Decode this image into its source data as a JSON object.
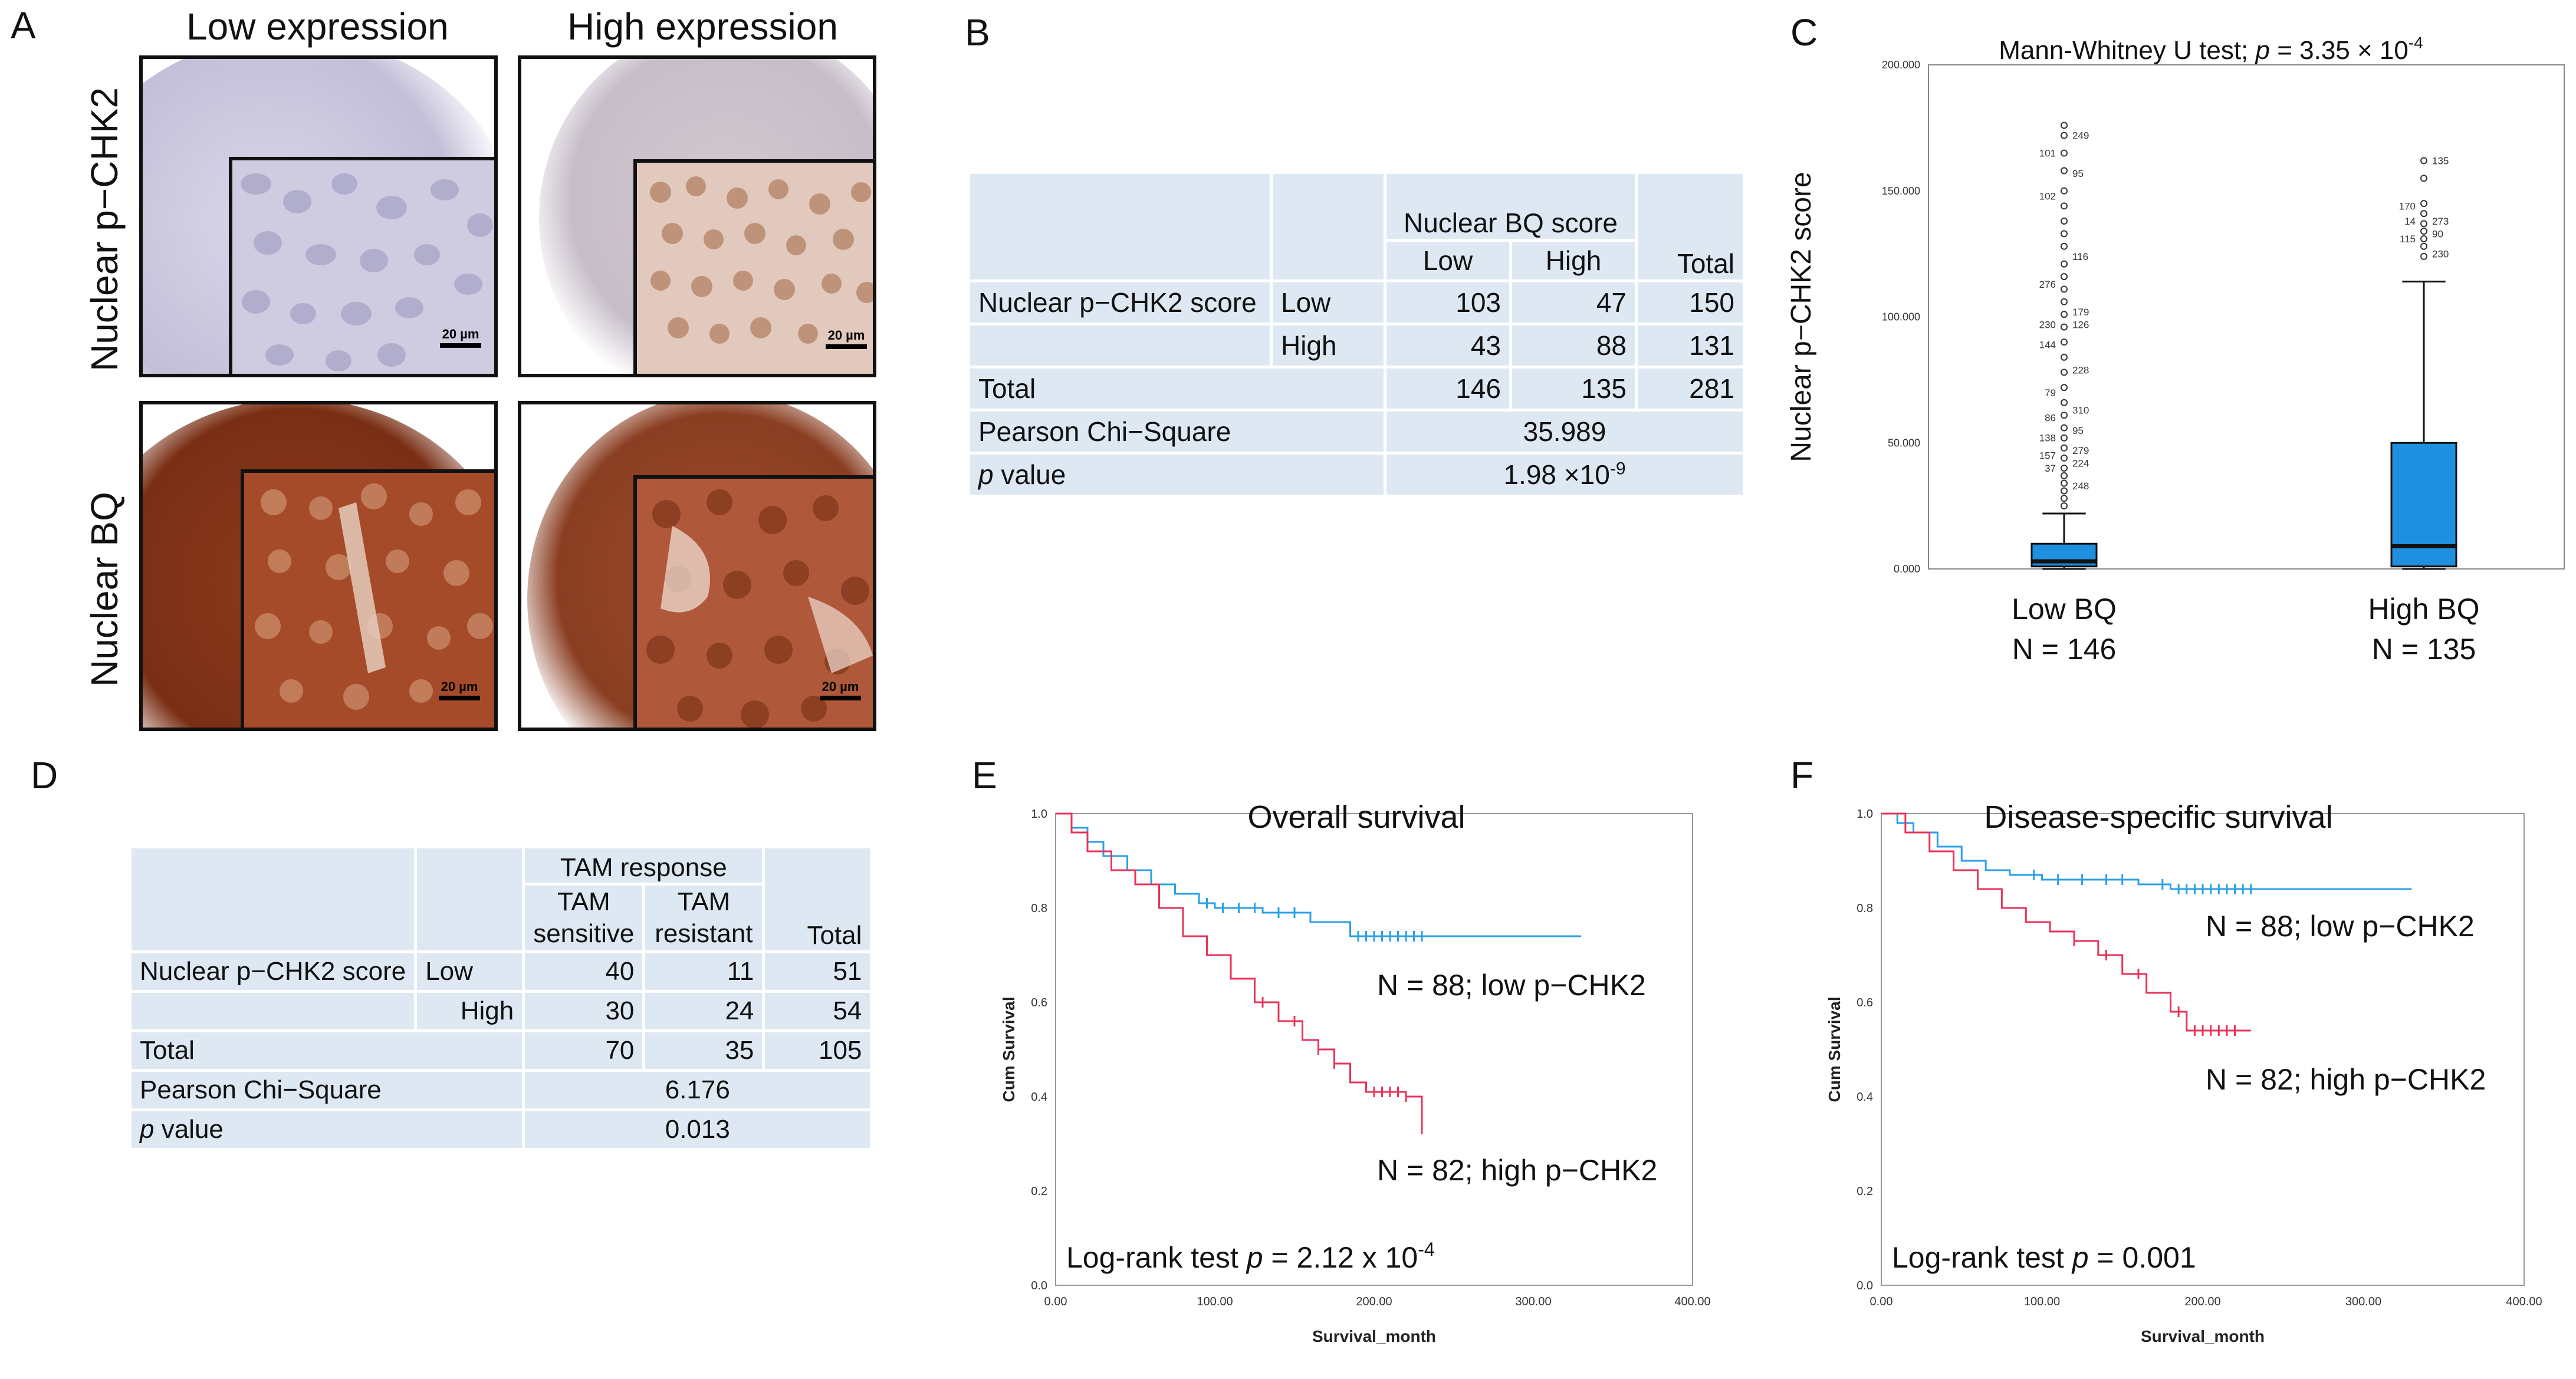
{
  "panel_labels": {
    "a": "A",
    "b": "B",
    "c": "C",
    "d": "D",
    "e": "E",
    "f": "F"
  },
  "panel_a": {
    "col_low": "Low expression",
    "col_high": "High expression",
    "row_pchk2": "Nuclear p−CHK2",
    "row_bq": "Nuclear BQ",
    "scale": "20 µm",
    "colors": {
      "hematoxylin": "#c9c7dc",
      "dab": "#a64b2a",
      "dab_dark": "#5e2212"
    }
  },
  "table_b": {
    "group_header": "Nuclear BQ score",
    "col_low": "Low",
    "col_high": "High",
    "col_total": "Total",
    "row_label": "Nuclear p−CHK2 score",
    "sub_low": "Low",
    "sub_high": "High",
    "r1": [
      "103",
      "47",
      "150"
    ],
    "r2": [
      "43",
      "88",
      "131"
    ],
    "total_label": "Total",
    "total": [
      "146",
      "135",
      "281"
    ],
    "chi_label": "Pearson Chi−Square",
    "chi_value": "35.989",
    "p_label_it": "p",
    "p_label_rest": " value",
    "p_mant": "1.98 ×10",
    "p_exp": "-9"
  },
  "chart_data": [
    {
      "panel": "C",
      "type": "boxplot",
      "title_prefix": "Mann-Whitney U test; ",
      "title_p": "p",
      "title_eq": " = 3.35 × 10",
      "title_exp": "-4",
      "ylabel": "Nuclear p−CHK2 score",
      "ylim": [
        0,
        200
      ],
      "yticks": [
        0,
        50,
        100,
        150,
        200
      ],
      "ytick_labels": [
        "0.000",
        "50.000",
        "100.000",
        "150.000",
        "200.000"
      ],
      "groups": [
        {
          "name": "Low BQ",
          "n_label": "N = 146",
          "q1": 1,
          "median": 3,
          "q3": 10,
          "whisker_low": 0,
          "whisker_high": 22,
          "outliers": [
            25,
            28,
            31,
            34,
            37,
            40,
            44,
            48,
            52,
            56,
            61,
            66,
            72,
            78,
            84,
            90,
            96,
            101,
            106,
            111,
            116,
            121,
            128,
            133,
            138,
            144,
            150,
            158,
            165,
            172,
            176
          ],
          "outlier_labels": [
            {
              "label": "249",
              "y": 172
            },
            {
              "label": "101",
              "y": 165
            },
            {
              "label": "95",
              "y": 157
            },
            {
              "label": "102",
              "y": 148
            },
            {
              "label": "116",
              "y": 124
            },
            {
              "label": "276",
              "y": 113
            },
            {
              "label": "179",
              "y": 102
            },
            {
              "label": "230",
              "y": 97
            },
            {
              "label": "126",
              "y": 97
            },
            {
              "label": "144",
              "y": 89
            },
            {
              "label": "228",
              "y": 79
            },
            {
              "label": "79",
              "y": 70
            },
            {
              "label": "310",
              "y": 63
            },
            {
              "label": "86",
              "y": 60
            },
            {
              "label": "95",
              "y": 55
            },
            {
              "label": "138",
              "y": 52
            },
            {
              "label": "279",
              "y": 47
            },
            {
              "label": "157",
              "y": 45
            },
            {
              "label": "224",
              "y": 42
            },
            {
              "label": "37",
              "y": 40
            },
            {
              "label": "248",
              "y": 33
            }
          ]
        },
        {
          "name": "High BQ",
          "n_label": "N = 135",
          "q1": 1,
          "median": 9,
          "q3": 50,
          "whisker_low": 0,
          "whisker_high": 114,
          "outliers": [
            124,
            128,
            131,
            134,
            137,
            141,
            145,
            155,
            162
          ],
          "outlier_labels": [
            {
              "label": "135",
              "y": 162
            },
            {
              "label": "170",
              "y": 144
            },
            {
              "label": "273",
              "y": 138
            },
            {
              "label": "14",
              "y": 138
            },
            {
              "label": "90",
              "y": 133
            },
            {
              "label": "115",
              "y": 131
            },
            {
              "label": "230",
              "y": 125
            }
          ]
        }
      ],
      "colors": {
        "box": "#1f8fe0"
      }
    },
    {
      "panel": "E",
      "type": "line",
      "subtype": "kaplan-meier",
      "title": "Overall survival",
      "xlabel": "Survival_month",
      "ylabel": "Cum Survival",
      "xlim": [
        0,
        400
      ],
      "ylim": [
        0,
        1.0
      ],
      "xticks": [
        0,
        100,
        200,
        300,
        400
      ],
      "xtick_labels": [
        "0.00",
        "100.00",
        "200.00",
        "300.00",
        "400.00"
      ],
      "yticks": [
        0,
        0.2,
        0.4,
        0.6,
        0.8,
        1.0
      ],
      "ytick_labels": [
        "0.0",
        "0.2",
        "0.4",
        "0.6",
        "0.8",
        "1.0"
      ],
      "annotation_prefix": "Log-rank test ",
      "annotation_p": "p",
      "annotation_eq": " = 2.12 x 10",
      "annotation_exp": "-4",
      "series": [
        {
          "name": "N = 88; low p−CHK2",
          "color": "#2aa0e6",
          "x": [
            0,
            10,
            20,
            30,
            45,
            60,
            75,
            90,
            100,
            110,
            130,
            160,
            185,
            200,
            330
          ],
          "y": [
            1.0,
            0.97,
            0.94,
            0.91,
            0.88,
            0.85,
            0.83,
            0.81,
            0.8,
            0.8,
            0.79,
            0.77,
            0.74,
            0.74,
            0.74
          ],
          "censor_x": [
            95,
            105,
            115,
            125,
            140,
            150,
            190,
            195,
            200,
            205,
            210,
            215,
            220,
            225,
            230
          ]
        },
        {
          "name": "N = 82; high p−CHK2",
          "color": "#e8335a",
          "x": [
            0,
            10,
            20,
            35,
            50,
            65,
            80,
            95,
            110,
            125,
            140,
            155,
            165,
            175,
            185,
            195,
            220,
            230
          ],
          "y": [
            1.0,
            0.96,
            0.92,
            0.88,
            0.85,
            0.8,
            0.74,
            0.7,
            0.65,
            0.6,
            0.56,
            0.52,
            0.5,
            0.47,
            0.43,
            0.41,
            0.4,
            0.32
          ],
          "censor_x": [
            130,
            150,
            165,
            175,
            200,
            205,
            210,
            215,
            220
          ]
        }
      ]
    },
    {
      "panel": "F",
      "type": "line",
      "subtype": "kaplan-meier",
      "title": "Disease-specific survival",
      "xlabel": "Survival_month",
      "ylabel": "Cum Survival",
      "xlim": [
        0,
        400
      ],
      "ylim": [
        0,
        1.0
      ],
      "xticks": [
        0,
        100,
        200,
        300,
        400
      ],
      "xtick_labels": [
        "0.00",
        "100.00",
        "200.00",
        "300.00",
        "400.00"
      ],
      "yticks": [
        0,
        0.2,
        0.4,
        0.6,
        0.8,
        1.0
      ],
      "ytick_labels": [
        "0.0",
        "0.2",
        "0.4",
        "0.6",
        "0.8",
        "1.0"
      ],
      "annotation_prefix": "Log-rank test ",
      "annotation_p": "p",
      "annotation_eq": " = 0.001",
      "annotation_exp": "",
      "series": [
        {
          "name": "N = 88; low p−CHK2",
          "color": "#2aa0e6",
          "x": [
            0,
            10,
            20,
            35,
            50,
            65,
            80,
            100,
            120,
            160,
            180,
            330
          ],
          "y": [
            1.0,
            0.98,
            0.96,
            0.93,
            0.9,
            0.88,
            0.87,
            0.86,
            0.86,
            0.85,
            0.84,
            0.84
          ],
          "censor_x": [
            95,
            110,
            125,
            140,
            150,
            175,
            185,
            190,
            195,
            200,
            205,
            210,
            215,
            220,
            225,
            230
          ]
        },
        {
          "name": "N = 82; high p−CHK2",
          "color": "#e8335a",
          "x": [
            0,
            15,
            30,
            45,
            60,
            75,
            90,
            105,
            120,
            135,
            150,
            165,
            180,
            190,
            230
          ],
          "y": [
            1.0,
            0.96,
            0.92,
            0.88,
            0.84,
            0.8,
            0.77,
            0.75,
            0.73,
            0.7,
            0.66,
            0.62,
            0.58,
            0.54,
            0.54
          ],
          "censor_x": [
            120,
            140,
            160,
            185,
            195,
            200,
            205,
            210,
            215,
            220
          ]
        }
      ]
    }
  ],
  "table_d": {
    "group_header": "TAM response",
    "col1_l1": "TAM",
    "col1_l2": "sensitive",
    "col2_l1": "TAM",
    "col2_l2": "resistant",
    "col_total": "Total",
    "row_label": "Nuclear p−CHK2 score",
    "sub_low": "Low",
    "sub_high": "High",
    "r1": [
      "40",
      "11",
      "51"
    ],
    "r2": [
      "30",
      "24",
      "54"
    ],
    "total_label": "Total",
    "total": [
      "70",
      "35",
      "105"
    ],
    "chi_label": "Pearson Chi−Square",
    "chi_value": "6.176",
    "p_label_it": "p",
    "p_label_rest": " value",
    "p_value": "0.013"
  }
}
